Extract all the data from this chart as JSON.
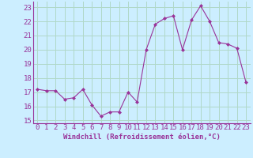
{
  "x": [
    0,
    1,
    2,
    3,
    4,
    5,
    6,
    7,
    8,
    9,
    10,
    11,
    12,
    13,
    14,
    15,
    16,
    17,
    18,
    19,
    20,
    21,
    22,
    23
  ],
  "y": [
    17.2,
    17.1,
    17.1,
    16.5,
    16.6,
    17.2,
    16.1,
    15.3,
    15.6,
    15.6,
    17.0,
    16.3,
    20.0,
    21.8,
    22.2,
    22.4,
    20.0,
    22.1,
    23.1,
    22.0,
    20.5,
    20.4,
    20.1,
    17.7
  ],
  "line_color": "#993399",
  "marker": "D",
  "marker_size": 2,
  "linewidth": 0.8,
  "xlabel": "Windchill (Refroidissement éolien,°C)",
  "xlabel_fontsize": 6.5,
  "ylabel_ticks": [
    15,
    16,
    17,
    18,
    19,
    20,
    21,
    22,
    23
  ],
  "xticks": [
    0,
    1,
    2,
    3,
    4,
    5,
    6,
    7,
    8,
    9,
    10,
    11,
    12,
    13,
    14,
    15,
    16,
    17,
    18,
    19,
    20,
    21,
    22,
    23
  ],
  "xlim": [
    -0.5,
    23.5
  ],
  "ylim": [
    14.8,
    23.4
  ],
  "bg_color": "#cceeff",
  "grid_color": "#aaddcc",
  "tick_color": "#993399",
  "tick_fontsize": 6.5,
  "xlabel_fontweight": "bold"
}
